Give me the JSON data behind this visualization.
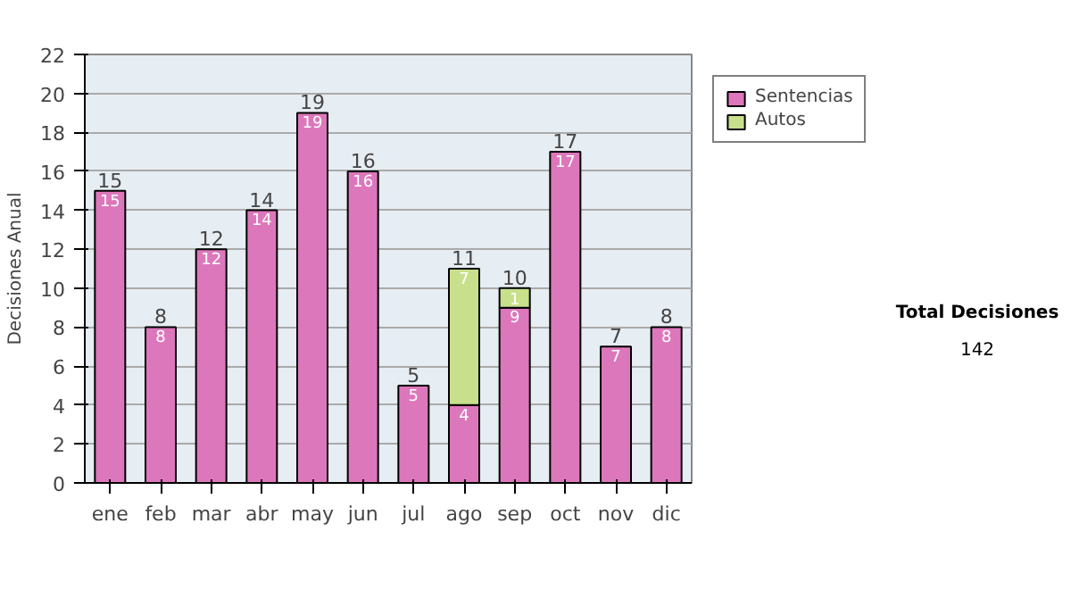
{
  "chart_data": {
    "type": "bar",
    "stacked": true,
    "ylabel": "Decisiones Anual",
    "categories": [
      "ene",
      "feb",
      "mar",
      "abr",
      "may",
      "jun",
      "jul",
      "ago",
      "sep",
      "oct",
      "nov",
      "dic"
    ],
    "series": [
      {
        "name": "Sentencias",
        "color": "#dd77bb",
        "values": [
          15,
          8,
          12,
          14,
          19,
          16,
          5,
          4,
          9,
          17,
          7,
          8
        ],
        "value_labels": [
          "15",
          "8",
          "12",
          "14",
          "19",
          "16",
          "5",
          "4",
          "9",
          "17",
          "7",
          "8"
        ]
      },
      {
        "name": "Autos",
        "color": "#c8e08c",
        "values": [
          0,
          0,
          0,
          0,
          0,
          0,
          0,
          7,
          1,
          0,
          0,
          0
        ],
        "value_labels": [
          null,
          null,
          null,
          null,
          null,
          null,
          null,
          "7",
          "1",
          null,
          null,
          null
        ]
      }
    ],
    "totals": [
      "15",
      "8",
      "12",
      "14",
      "19",
      "16",
      "5",
      "11",
      "10",
      "17",
      "7",
      "8"
    ],
    "ylim": [
      0,
      22
    ],
    "yticks": [
      0,
      2,
      4,
      6,
      8,
      10,
      12,
      14,
      16,
      18,
      20,
      22
    ],
    "grid": "y",
    "legend": "right",
    "annotations": [
      "Total Decisiones",
      "142"
    ]
  }
}
